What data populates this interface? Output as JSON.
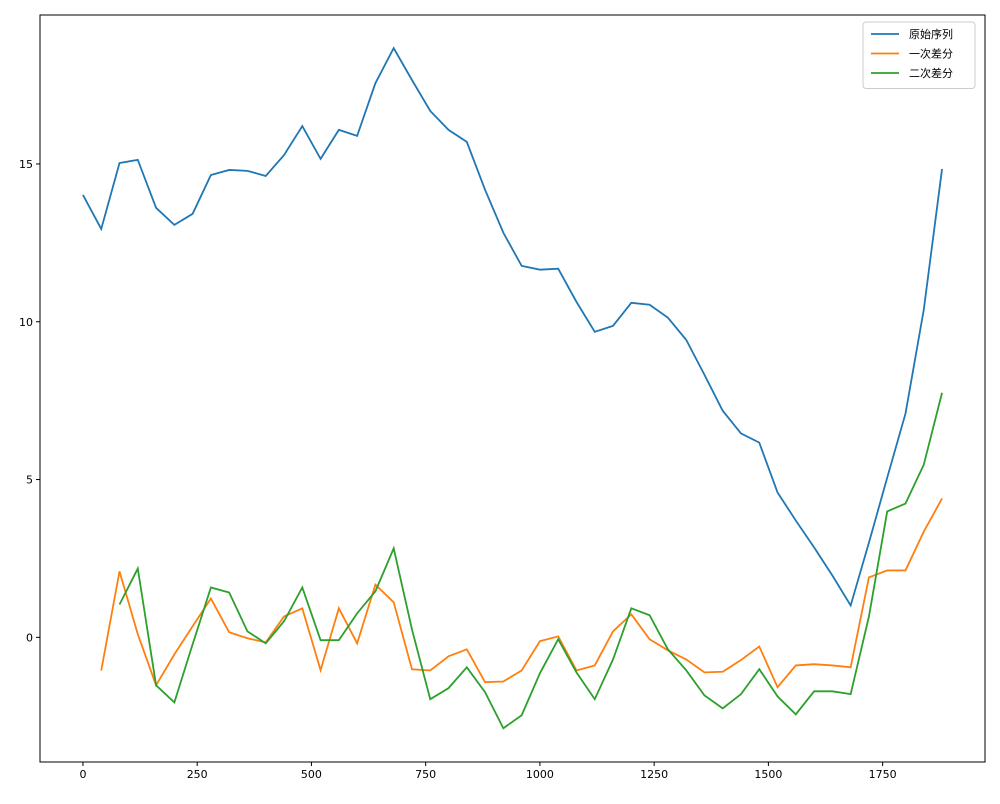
{
  "chart_data": {
    "type": "line",
    "x": [
      0,
      40,
      80,
      120,
      160,
      200,
      240,
      280,
      320,
      360,
      400,
      440,
      480,
      520,
      560,
      600,
      640,
      680,
      720,
      760,
      800,
      840,
      880,
      920,
      960,
      1000,
      1040,
      1080,
      1120,
      1160,
      1200,
      1240,
      1280,
      1320,
      1360,
      1400,
      1440,
      1480,
      1520,
      1560,
      1600,
      1640,
      1680,
      1720,
      1760,
      1800,
      1840,
      1880
    ],
    "series": [
      {
        "name": "原始序列",
        "color": "#1f77b4",
        "values": [
          14.02,
          12.94,
          15.03,
          15.13,
          13.61,
          13.07,
          13.42,
          14.65,
          14.81,
          14.78,
          14.62,
          15.28,
          16.2,
          15.16,
          16.08,
          15.89,
          17.56,
          18.67,
          17.66,
          16.68,
          16.08,
          15.7,
          14.18,
          12.82,
          11.77,
          11.65,
          11.68,
          10.63,
          9.68,
          9.87,
          10.6,
          10.54,
          10.13,
          9.43,
          8.32,
          7.18,
          6.46,
          6.17,
          4.59,
          3.7,
          2.85,
          1.96,
          1.01,
          3.0,
          5.06,
          7.09,
          10.38,
          14.84
        ]
      },
      {
        "name": "一次差分",
        "color": "#ff7f0e",
        "values": [
          null,
          -1.05,
          2.09,
          0.1,
          -1.52,
          -0.54,
          0.35,
          1.23,
          0.16,
          -0.03,
          -0.16,
          0.66,
          0.92,
          -1.04,
          0.92,
          -0.19,
          1.67,
          1.11,
          -1.01,
          -1.05,
          -0.6,
          -0.38,
          -1.42,
          -1.4,
          -1.05,
          -0.12,
          0.03,
          -1.05,
          -0.89,
          0.19,
          0.73,
          -0.06,
          -0.41,
          -0.7,
          -1.11,
          -1.09,
          -0.72,
          -0.29,
          -1.58,
          -0.89,
          -0.85,
          -0.89,
          -0.95,
          1.9,
          2.12,
          2.12,
          3.35,
          4.4
        ]
      },
      {
        "name": "二次差分",
        "color": "#2ca02c",
        "values": [
          null,
          null,
          1.04,
          2.18,
          -1.52,
          -2.06,
          -0.22,
          1.58,
          1.42,
          0.19,
          -0.19,
          0.51,
          1.58,
          -0.09,
          -0.09,
          0.76,
          1.46,
          2.82,
          0.25,
          -1.96,
          -1.61,
          -0.95,
          -1.74,
          -2.88,
          -2.47,
          -1.14,
          -0.06,
          -1.11,
          -1.96,
          -0.7,
          0.92,
          0.7,
          -0.38,
          -1.04,
          -1.84,
          -2.25,
          -1.8,
          -1.01,
          -1.87,
          -2.44,
          -1.71,
          -1.71,
          -1.8,
          0.66,
          3.99,
          4.24,
          5.47,
          7.75
        ]
      }
    ],
    "xlim": [
      -94,
      1974
    ],
    "ylim": [
      -3.95,
      19.72
    ],
    "xticks": [
      0,
      250,
      500,
      750,
      1000,
      1250,
      1500,
      1750
    ],
    "yticks": [
      0,
      5,
      10,
      15
    ],
    "legend": "upper right"
  }
}
